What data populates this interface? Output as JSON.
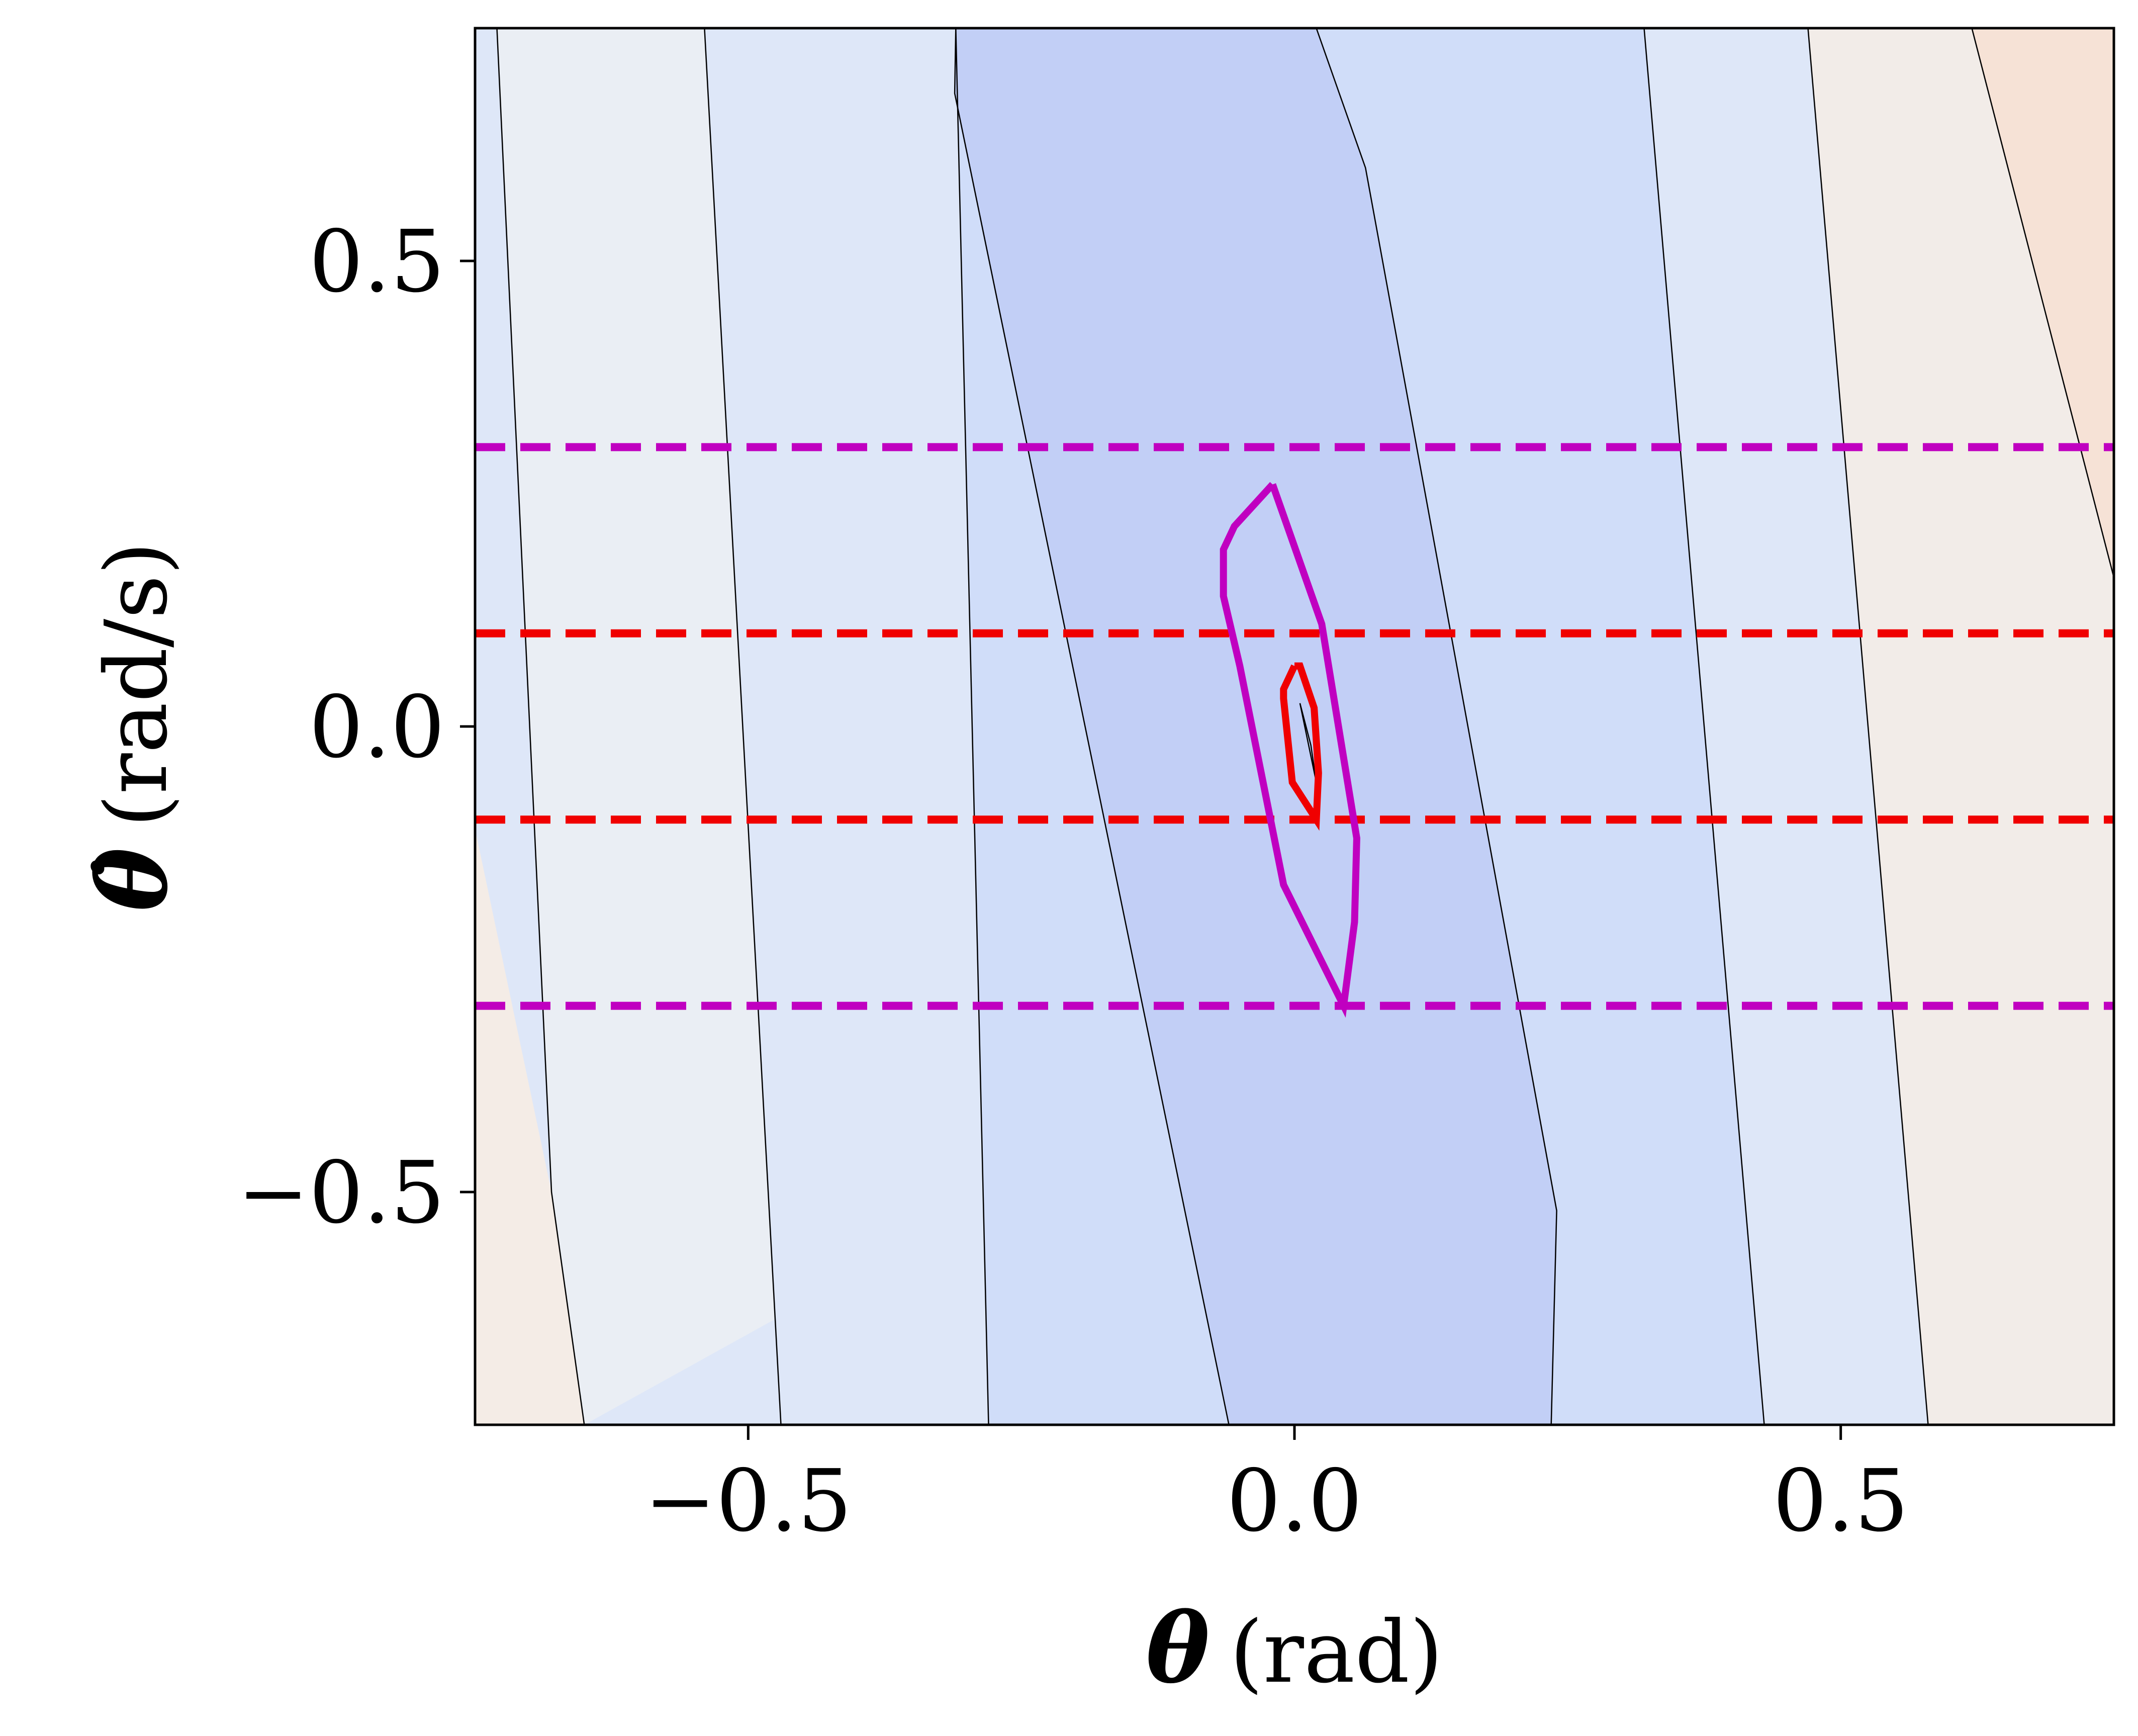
{
  "chart_data": {
    "type": "contour",
    "xlabel": {
      "symbol": "θ",
      "unit": "(rad)"
    },
    "ylabel": {
      "symbol": "θ̇",
      "unit": "(rad/s)"
    },
    "xlim": [
      -0.75,
      0.75
    ],
    "ylim": [
      -0.75,
      0.75
    ],
    "xticks": [
      -0.5,
      0.0,
      0.5
    ],
    "xtick_labels": [
      "−0.5",
      "0.0",
      "0.5"
    ],
    "yticks": [
      -0.5,
      0.0,
      0.5
    ],
    "ytick_labels": [
      "−0.5",
      "0.0",
      "0.5"
    ],
    "colormap": "coolwarm",
    "grid": false,
    "contour_bands": [
      {
        "color": "#eaeef4",
        "left": [
          [
            -0.73,
            0.75
          ],
          [
            -0.68,
            -0.5
          ],
          [
            -0.65,
            -0.75
          ]
        ],
        "right": [
          [
            0.62,
            0.75
          ],
          [
            0.75,
            0.16
          ]
        ]
      },
      {
        "color": "#dee7f8",
        "left": [
          [
            -0.54,
            0.75
          ],
          [
            -0.47,
            -0.75
          ]
        ],
        "right": [
          [
            0.47,
            0.75
          ],
          [
            0.58,
            -0.75
          ]
        ]
      },
      {
        "color": "#d0ddf9",
        "left": [
          [
            -0.31,
            0.75
          ],
          [
            -0.28,
            -0.75
          ]
        ],
        "right": [
          [
            0.32,
            0.75
          ],
          [
            0.43,
            -0.75
          ]
        ]
      },
      {
        "color": "#c2cff6",
        "left": [
          [
            -0.31,
            0.75
          ],
          [
            -0.311,
            0.68
          ],
          [
            -0.06,
            -0.75
          ]
        ],
        "right": [
          [
            0.02,
            0.75
          ],
          [
            0.065,
            0.6
          ],
          [
            0.24,
            -0.52
          ],
          [
            0.235,
            -0.75
          ]
        ]
      }
    ],
    "contour_lines": [
      [
        [
          -0.73,
          0.75
        ],
        [
          -0.68,
          -0.5
        ],
        [
          -0.65,
          -0.75
        ]
      ],
      [
        [
          -0.54,
          0.75
        ],
        [
          -0.47,
          -0.75
        ]
      ],
      [
        [
          -0.31,
          0.75
        ],
        [
          -0.28,
          -0.75
        ]
      ],
      [
        [
          -0.31,
          0.75
        ],
        [
          -0.311,
          0.68
        ],
        [
          -0.06,
          -0.75
        ]
      ],
      [
        [
          0.02,
          0.75
        ],
        [
          0.065,
          0.6
        ],
        [
          0.24,
          -0.52
        ],
        [
          0.235,
          -0.75
        ]
      ],
      [
        [
          0.32,
          0.75
        ],
        [
          0.43,
          -0.75
        ]
      ],
      [
        [
          0.47,
          0.75
        ],
        [
          0.58,
          -0.75
        ]
      ],
      [
        [
          0.62,
          0.75
        ],
        [
          0.75,
          0.16
        ]
      ]
    ],
    "corner_regions": [
      {
        "color": "#f4ece6",
        "points": [
          [
            -0.75,
            -0.11
          ],
          [
            -0.75,
            -0.75
          ],
          [
            -0.65,
            -0.75
          ],
          [
            -0.68,
            -0.5
          ]
        ]
      },
      {
        "color": "#f6e2d6",
        "points": [
          [
            0.62,
            0.75
          ],
          [
            0.75,
            0.75
          ],
          [
            0.75,
            0.16
          ]
        ]
      },
      {
        "color": "#f2ece8",
        "points": [
          [
            0.75,
            0.16
          ],
          [
            0.75,
            -0.75
          ],
          [
            0.58,
            -0.75
          ],
          [
            0.47,
            0.75
          ],
          [
            0.62,
            0.75
          ]
        ]
      }
    ],
    "center_contour": [
      [
        0.005,
        0.025
      ],
      [
        0.02,
        -0.06
      ],
      [
        0.015,
        -0.02
      ],
      [
        0.005,
        0.025
      ]
    ],
    "series": [
      {
        "color": "#c000c0",
        "style": "solid",
        "points": [
          [
            -0.02,
            0.26
          ],
          [
            -0.055,
            0.215
          ],
          [
            -0.065,
            0.19
          ],
          [
            -0.065,
            0.14
          ],
          [
            -0.05,
            0.065
          ],
          [
            -0.01,
            -0.17
          ],
          [
            0.045,
            -0.3
          ],
          [
            0.055,
            -0.21
          ],
          [
            0.057,
            -0.12
          ],
          [
            0.025,
            0.11
          ],
          [
            -0.02,
            0.26
          ]
        ]
      },
      {
        "color": "#f00000",
        "style": "solid",
        "points": [
          [
            0.0,
            0.065
          ],
          [
            -0.01,
            0.04
          ],
          [
            -0.01,
            0.03
          ],
          [
            -0.002,
            -0.06
          ],
          [
            0.02,
            -0.1
          ],
          [
            0.022,
            -0.05
          ],
          [
            0.018,
            0.02
          ],
          [
            0.005,
            0.065
          ],
          [
            0.0,
            0.065
          ]
        ]
      }
    ],
    "hlines": [
      {
        "y": 0.3,
        "color": "#c000c0",
        "style": "dashed"
      },
      {
        "y": 0.1,
        "color": "#f00000",
        "style": "dashed"
      },
      {
        "y": -0.1,
        "color": "#f00000",
        "style": "dashed"
      },
      {
        "y": -0.3,
        "color": "#c000c0",
        "style": "dashed"
      }
    ]
  }
}
